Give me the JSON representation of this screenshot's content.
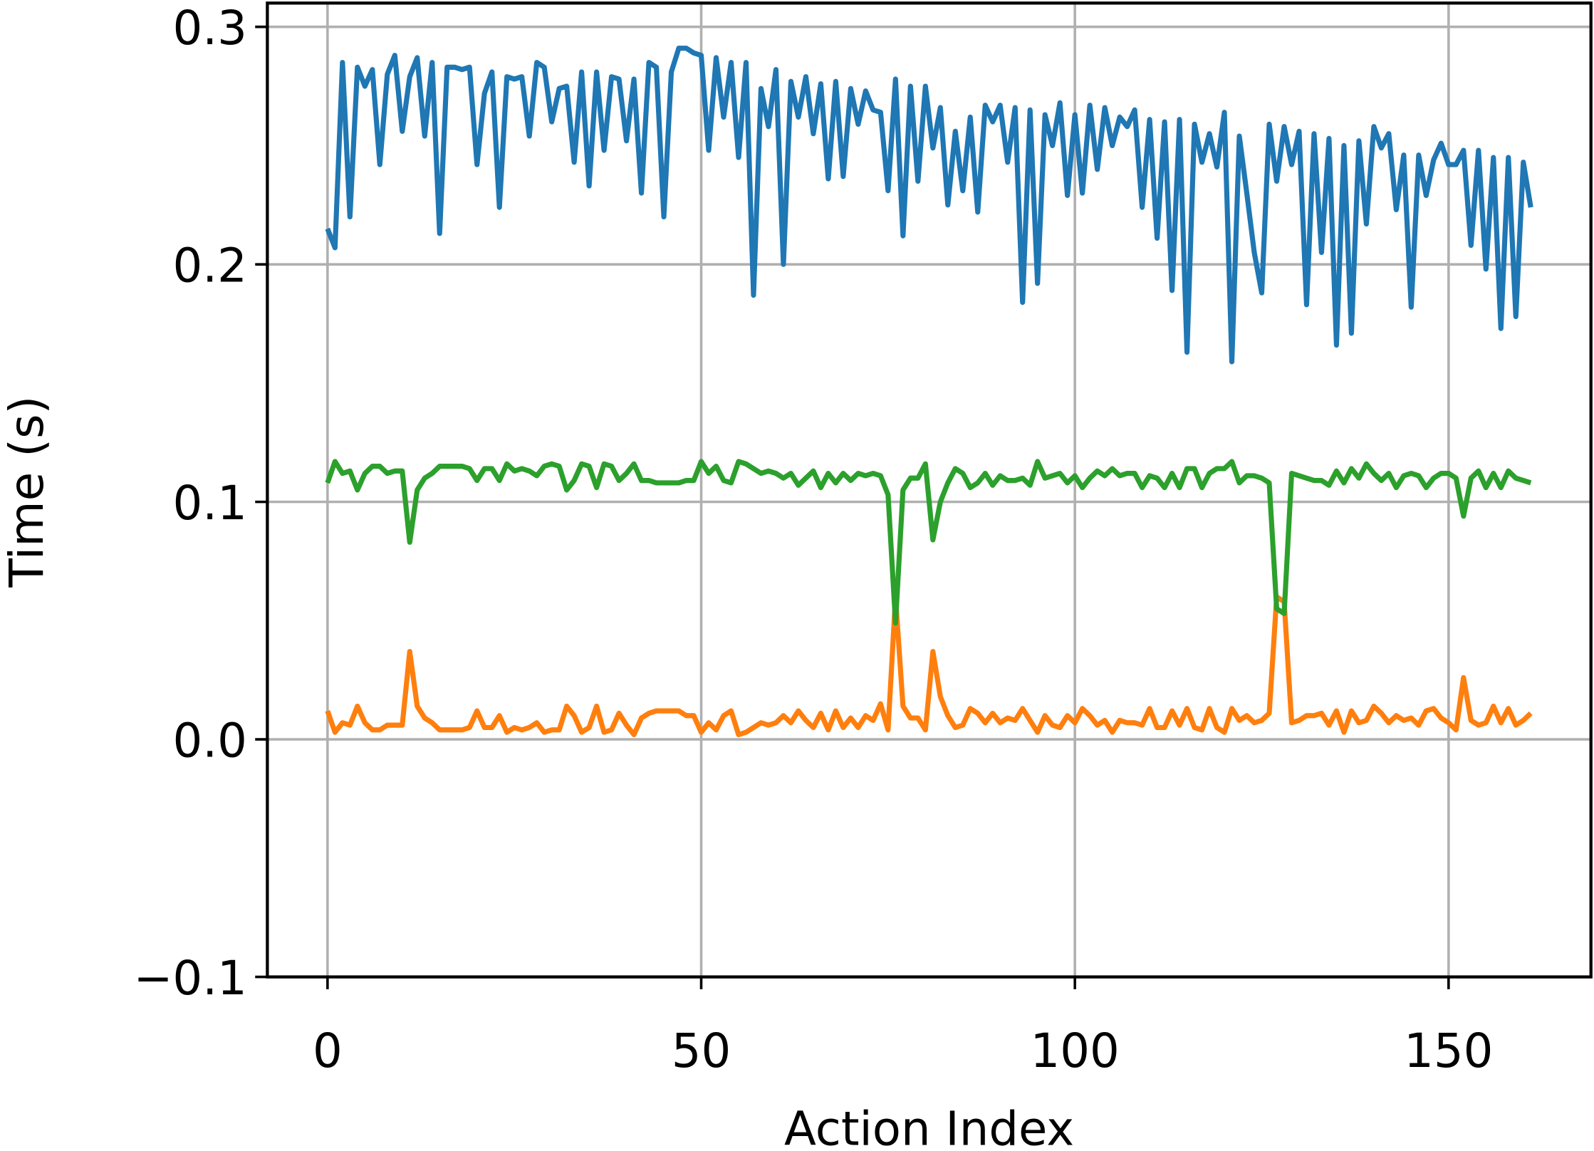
{
  "chart_data": {
    "type": "line",
    "xlabel": "Action Index",
    "ylabel": "Time (s)",
    "x": [
      0,
      1,
      2,
      3,
      4,
      5,
      6,
      7,
      8,
      9,
      10,
      11,
      12,
      13,
      14,
      15,
      16,
      17,
      18,
      19,
      20,
      21,
      22,
      23,
      24,
      25,
      26,
      27,
      28,
      29,
      30,
      31,
      32,
      33,
      34,
      35,
      36,
      37,
      38,
      39,
      40,
      41,
      42,
      43,
      44,
      45,
      46,
      47,
      48,
      49,
      50,
      51,
      52,
      53,
      54,
      55,
      56,
      57,
      58,
      59,
      60,
      61,
      62,
      63,
      64,
      65,
      66,
      67,
      68,
      69,
      70,
      71,
      72,
      73,
      74,
      75,
      76,
      77,
      78,
      79,
      80,
      81,
      82,
      83,
      84,
      85,
      86,
      87,
      88,
      89,
      90,
      91,
      92,
      93,
      94,
      95,
      96,
      97,
      98,
      99,
      100,
      101,
      102,
      103,
      104,
      105,
      106,
      107,
      108,
      109,
      110,
      111,
      112,
      113,
      114,
      115,
      116,
      117,
      118,
      119,
      120,
      121,
      122,
      123,
      124,
      125,
      126,
      127,
      128,
      129,
      130,
      131,
      132,
      133,
      134,
      135,
      136,
      137,
      138,
      139,
      140,
      141,
      142,
      143,
      144,
      145,
      146,
      147,
      148,
      149,
      150,
      151,
      152,
      153,
      154,
      155,
      156,
      157,
      158,
      159,
      160,
      161
    ],
    "series": [
      {
        "color": "#1f77b4",
        "values": [
          0.215,
          0.207,
          0.285,
          0.22,
          0.283,
          0.275,
          0.282,
          0.242,
          0.28,
          0.288,
          0.256,
          0.279,
          0.287,
          0.254,
          0.285,
          0.213,
          0.283,
          0.283,
          0.282,
          0.283,
          0.242,
          0.272,
          0.281,
          0.224,
          0.279,
          0.278,
          0.279,
          0.254,
          0.285,
          0.283,
          0.26,
          0.274,
          0.275,
          0.243,
          0.281,
          0.233,
          0.281,
          0.248,
          0.279,
          0.278,
          0.252,
          0.278,
          0.23,
          0.285,
          0.283,
          0.22,
          0.281,
          0.291,
          0.291,
          0.289,
          0.288,
          0.248,
          0.287,
          0.262,
          0.285,
          0.245,
          0.285,
          0.187,
          0.274,
          0.258,
          0.282,
          0.2,
          0.277,
          0.262,
          0.279,
          0.255,
          0.276,
          0.236,
          0.277,
          0.237,
          0.274,
          0.259,
          0.273,
          0.265,
          0.264,
          0.231,
          0.278,
          0.212,
          0.275,
          0.235,
          0.275,
          0.249,
          0.266,
          0.225,
          0.256,
          0.231,
          0.262,
          0.222,
          0.267,
          0.26,
          0.267,
          0.243,
          0.266,
          0.184,
          0.265,
          0.192,
          0.263,
          0.25,
          0.268,
          0.229,
          0.263,
          0.23,
          0.267,
          0.24,
          0.266,
          0.25,
          0.262,
          0.258,
          0.265,
          0.224,
          0.261,
          0.211,
          0.26,
          0.189,
          0.261,
          0.163,
          0.259,
          0.243,
          0.255,
          0.241,
          0.264,
          0.159,
          0.254,
          0.23,
          0.205,
          0.188,
          0.259,
          0.235,
          0.258,
          0.242,
          0.256,
          0.183,
          0.255,
          0.205,
          0.253,
          0.166,
          0.25,
          0.171,
          0.252,
          0.217,
          0.258,
          0.249,
          0.255,
          0.223,
          0.246,
          0.182,
          0.246,
          0.229,
          0.244,
          0.251,
          0.242,
          0.242,
          0.248,
          0.208,
          0.248,
          0.198,
          0.245,
          0.173,
          0.245,
          0.178,
          0.243,
          0.224
        ]
      },
      {
        "color": "#ff7f0e",
        "values": [
          0.012,
          0.003,
          0.007,
          0.006,
          0.014,
          0.007,
          0.004,
          0.004,
          0.006,
          0.006,
          0.006,
          0.037,
          0.014,
          0.009,
          0.007,
          0.004,
          0.004,
          0.004,
          0.004,
          0.005,
          0.012,
          0.005,
          0.005,
          0.01,
          0.003,
          0.005,
          0.004,
          0.005,
          0.007,
          0.003,
          0.004,
          0.004,
          0.014,
          0.01,
          0.003,
          0.005,
          0.014,
          0.003,
          0.004,
          0.011,
          0.006,
          0.002,
          0.009,
          0.011,
          0.012,
          0.012,
          0.012,
          0.012,
          0.01,
          0.01,
          0.003,
          0.007,
          0.004,
          0.01,
          0.012,
          0.002,
          0.003,
          0.005,
          0.007,
          0.006,
          0.007,
          0.01,
          0.007,
          0.012,
          0.008,
          0.005,
          0.011,
          0.004,
          0.012,
          0.005,
          0.009,
          0.005,
          0.01,
          0.008,
          0.015,
          0.004,
          0.06,
          0.014,
          0.009,
          0.009,
          0.004,
          0.037,
          0.018,
          0.01,
          0.005,
          0.006,
          0.013,
          0.011,
          0.007,
          0.011,
          0.007,
          0.009,
          0.008,
          0.013,
          0.008,
          0.003,
          0.01,
          0.006,
          0.005,
          0.01,
          0.007,
          0.013,
          0.01,
          0.006,
          0.008,
          0.003,
          0.008,
          0.007,
          0.007,
          0.006,
          0.013,
          0.005,
          0.005,
          0.012,
          0.006,
          0.013,
          0.005,
          0.004,
          0.013,
          0.005,
          0.003,
          0.013,
          0.008,
          0.01,
          0.007,
          0.008,
          0.011,
          0.06,
          0.058,
          0.007,
          0.008,
          0.01,
          0.01,
          0.011,
          0.006,
          0.012,
          0.003,
          0.012,
          0.007,
          0.008,
          0.014,
          0.011,
          0.007,
          0.01,
          0.008,
          0.009,
          0.006,
          0.012,
          0.013,
          0.009,
          0.007,
          0.004,
          0.026,
          0.008,
          0.006,
          0.007,
          0.014,
          0.007,
          0.013,
          0.006,
          0.008,
          0.011
        ]
      },
      {
        "color": "#2ca02c",
        "values": [
          0.108,
          0.117,
          0.112,
          0.113,
          0.105,
          0.112,
          0.115,
          0.115,
          0.112,
          0.113,
          0.113,
          0.083,
          0.105,
          0.11,
          0.112,
          0.115,
          0.115,
          0.115,
          0.115,
          0.114,
          0.109,
          0.114,
          0.114,
          0.109,
          0.116,
          0.113,
          0.114,
          0.113,
          0.111,
          0.115,
          0.116,
          0.115,
          0.105,
          0.109,
          0.116,
          0.115,
          0.106,
          0.116,
          0.115,
          0.109,
          0.112,
          0.116,
          0.109,
          0.109,
          0.108,
          0.108,
          0.108,
          0.108,
          0.109,
          0.109,
          0.117,
          0.112,
          0.115,
          0.109,
          0.108,
          0.117,
          0.116,
          0.114,
          0.112,
          0.113,
          0.112,
          0.11,
          0.112,
          0.107,
          0.11,
          0.113,
          0.106,
          0.112,
          0.108,
          0.112,
          0.109,
          0.112,
          0.111,
          0.112,
          0.111,
          0.103,
          0.049,
          0.105,
          0.11,
          0.11,
          0.116,
          0.084,
          0.1,
          0.108,
          0.114,
          0.112,
          0.106,
          0.108,
          0.112,
          0.107,
          0.111,
          0.109,
          0.109,
          0.11,
          0.107,
          0.117,
          0.11,
          0.111,
          0.112,
          0.108,
          0.111,
          0.106,
          0.11,
          0.113,
          0.111,
          0.114,
          0.111,
          0.112,
          0.112,
          0.106,
          0.111,
          0.11,
          0.106,
          0.112,
          0.106,
          0.114,
          0.114,
          0.106,
          0.112,
          0.114,
          0.114,
          0.117,
          0.108,
          0.111,
          0.111,
          0.11,
          0.108,
          0.055,
          0.053,
          0.112,
          0.111,
          0.11,
          0.109,
          0.109,
          0.107,
          0.113,
          0.108,
          0.114,
          0.11,
          0.116,
          0.112,
          0.109,
          0.112,
          0.106,
          0.111,
          0.112,
          0.111,
          0.106,
          0.11,
          0.112,
          0.112,
          0.11,
          0.094,
          0.11,
          0.113,
          0.106,
          0.112,
          0.106,
          0.113,
          0.11,
          0.109,
          0.108
        ]
      }
    ],
    "xlim": [
      -8.05,
      169.05
    ],
    "xticks": [
      0,
      50,
      100,
      150
    ],
    "ylim": [
      -0.1,
      0.31
    ],
    "yticks": [
      {
        "value": -0.1,
        "label": "−0.1"
      },
      {
        "value": 0,
        "label": "0.0"
      },
      0.1,
      0.2,
      0.3
    ],
    "grid": true
  }
}
